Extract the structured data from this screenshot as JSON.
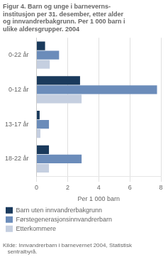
{
  "chart_data": {
    "type": "bar",
    "orientation": "horizontal",
    "title": "Figur 4. Barn og unge i barneverns-\ninstitusjon per 31. desember, etter alder\nog innvandrerbakgrunn. Per 1 000 barn i\nulike aldersgrupper. 2004",
    "categories": [
      "0-22 år",
      "0-12 år",
      "13-17 år",
      "18-22 år"
    ],
    "series": [
      {
        "name": "Barn uten innvandrerbakgrunn",
        "color": "#1a3a5c",
        "values": [
          0.55,
          2.8,
          0.2,
          0.8
        ]
      },
      {
        "name": "Førstegenerasjonsinnvandrerbarn",
        "color": "#6b8cba",
        "values": [
          1.45,
          7.75,
          0.8,
          2.9
        ]
      },
      {
        "name": "Etterkommere",
        "color": "#c5cfe0",
        "values": [
          0.85,
          2.9,
          0.25,
          0.8
        ]
      }
    ],
    "xlabel": "Per 1 000 barn",
    "xlim": [
      0,
      8
    ],
    "xticks": [
      0,
      2,
      4,
      6,
      8
    ],
    "grid": true,
    "legend": "bottom",
    "source": "Kilde: Innvandrerbarn i barnevernet 2004, Statistisk\n   sentralbyrå."
  }
}
